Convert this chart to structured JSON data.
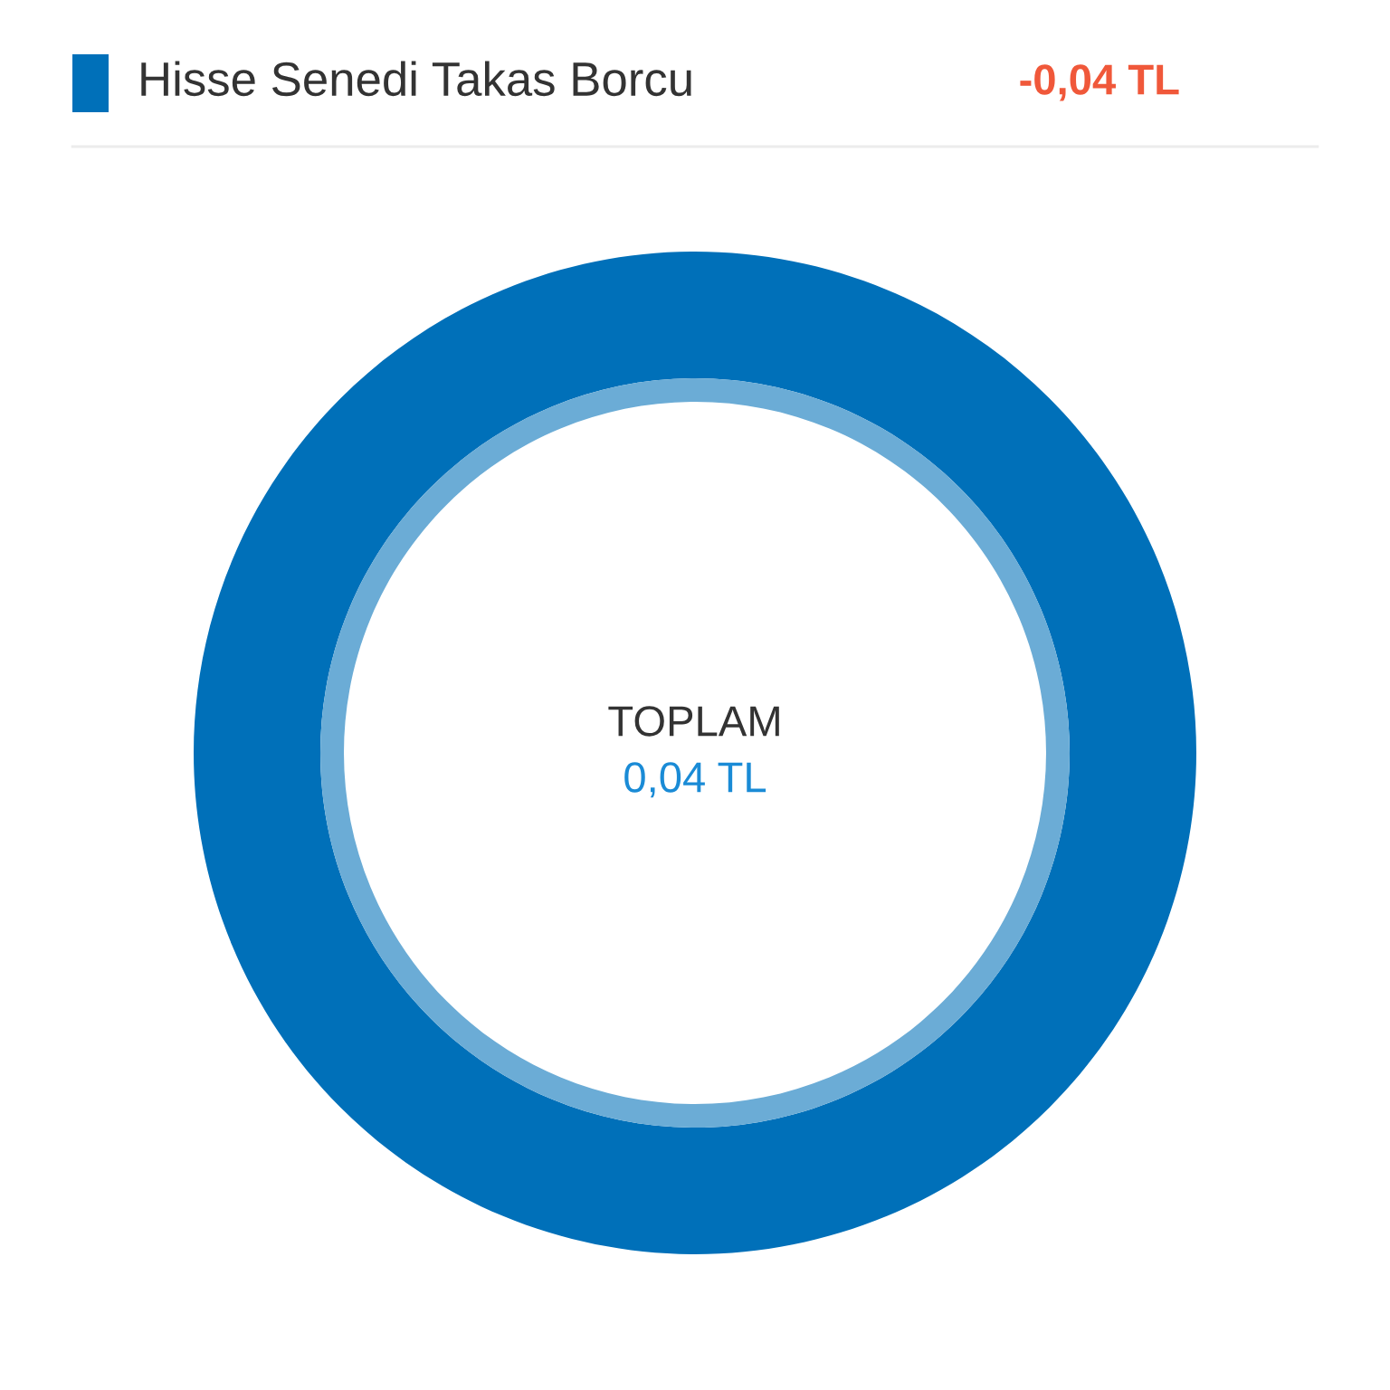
{
  "chart_data": {
    "type": "donut",
    "categories": [
      "Hisse Senedi Takas Borcu"
    ],
    "colors": [
      "#0070b9"
    ],
    "values": [
      100
    ],
    "legend": "top",
    "annotations": [
      "-0,04 TL",
      "TOPLAM",
      "0,04 TL"
    ]
  }
}
